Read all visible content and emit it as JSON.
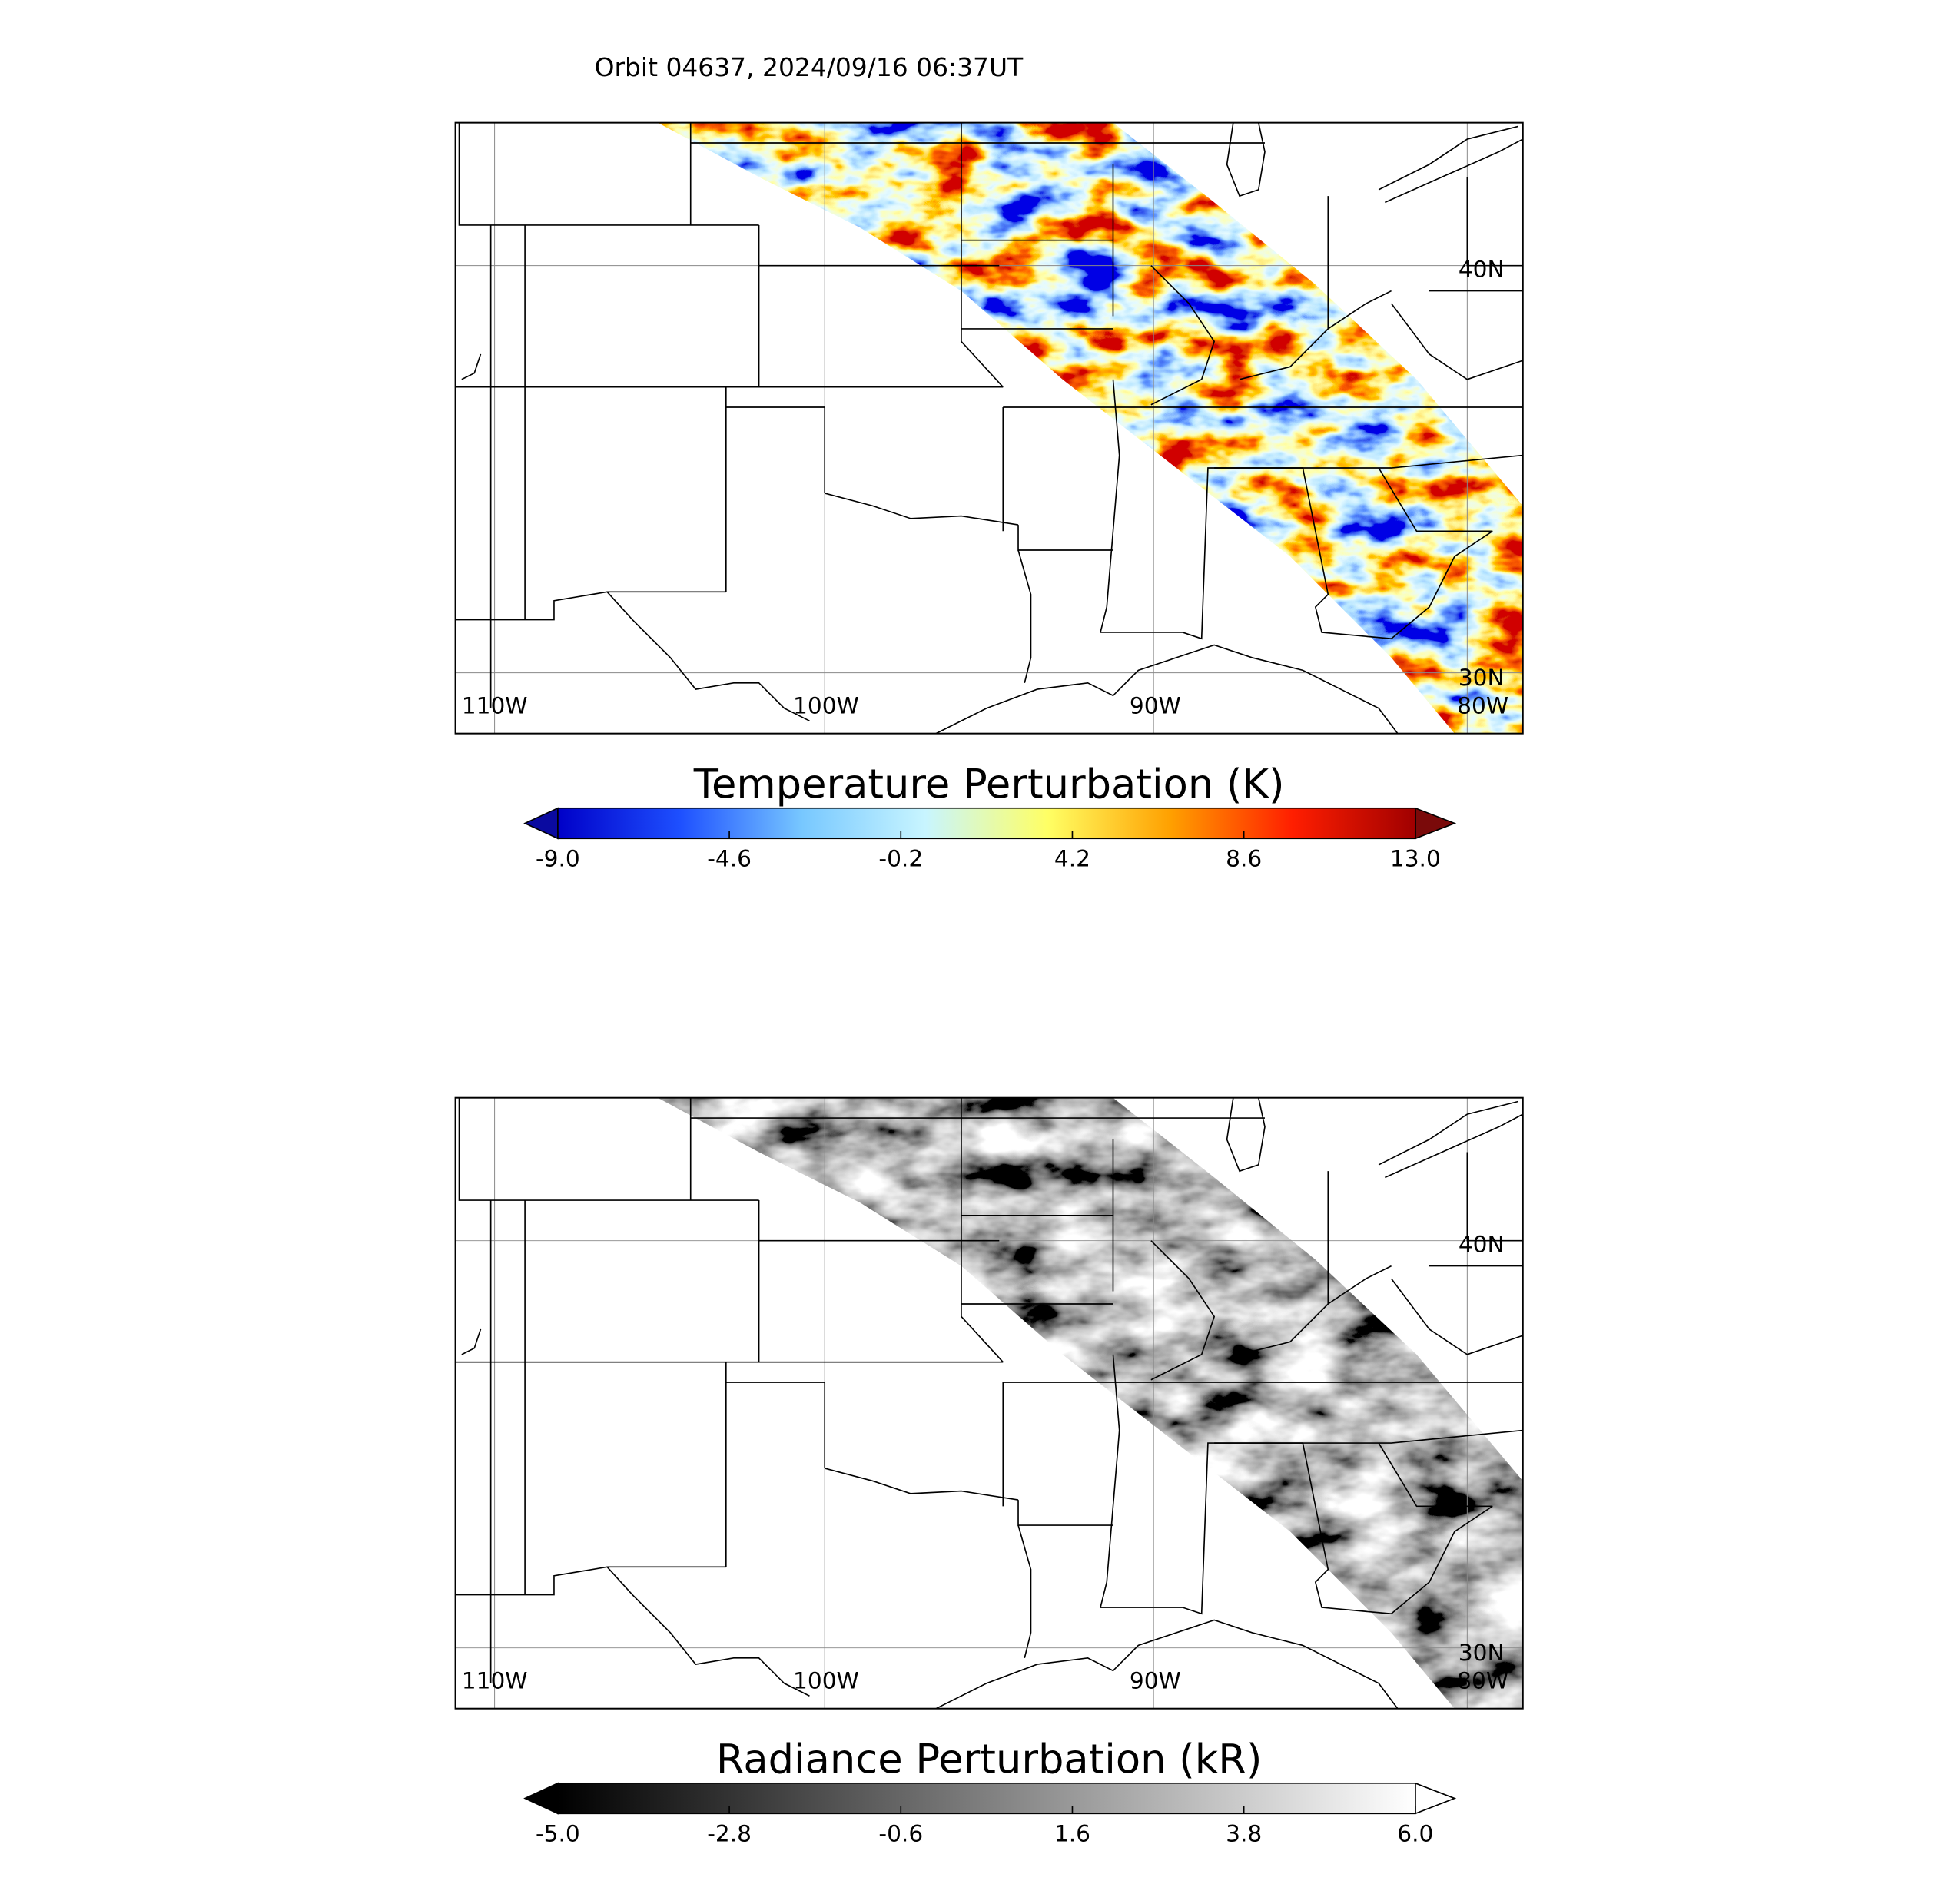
{
  "title": "Orbit 04637, 2024/09/16 06:37UT",
  "map": {
    "lon_labels": [
      "110W",
      "100W",
      "90W",
      "80W"
    ],
    "lat_labels": [
      "40N",
      "30N"
    ]
  },
  "panels": [
    {
      "colorbar": {
        "label": "Temperature Perturbation (K)",
        "lim": [
          -9,
          13
        ],
        "ticks": [
          {
            "value": -9,
            "label": "-9.0"
          },
          {
            "value": -4.6,
            "label": "-4.6"
          },
          {
            "value": -0.2,
            "label": "-0.2"
          },
          {
            "value": 4.2,
            "label": "4.2"
          },
          {
            "value": 8.6,
            "label": "8.6"
          },
          {
            "value": 13,
            "label": "13.0"
          }
        ],
        "colors": [
          "#0000c8",
          "#1e50ff",
          "#78c8ff",
          "#c8f5ff",
          "#ffff64",
          "#ffa000",
          "#ff1e00",
          "#a00000"
        ],
        "extend_colors": [
          "#0a0aa0",
          "#7a0a0a"
        ]
      }
    },
    {
      "colorbar": {
        "label": "Radiance Perturbation (kR)",
        "lim": [
          -5,
          6
        ],
        "ticks": [
          {
            "value": -5,
            "label": "-5.0"
          },
          {
            "value": -2.8,
            "label": "-2.8"
          },
          {
            "value": -0.6,
            "label": "-0.6"
          },
          {
            "value": 1.6,
            "label": "1.6"
          },
          {
            "value": 3.8,
            "label": "3.8"
          },
          {
            "value": 6,
            "label": "6.0"
          }
        ],
        "colors": [
          "#000000",
          "#ffffff"
        ],
        "extend_colors": [
          "#000000",
          "#ffffff"
        ]
      }
    }
  ]
}
